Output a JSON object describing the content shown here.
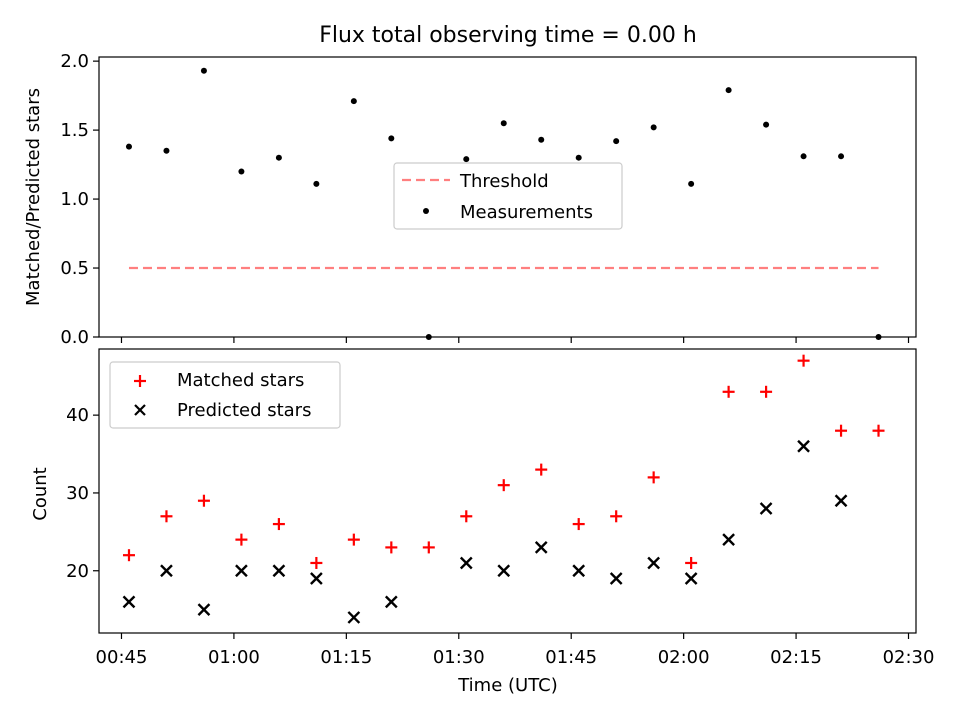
{
  "figure": {
    "title": "Flux total observing time = 0.00 h"
  },
  "chart_data": [
    {
      "type": "scatter",
      "title": "Flux total observing time = 0.00 h",
      "xlabel": "",
      "ylabel": "Matched/Predicted stars",
      "xlim": [
        "00:42",
        "02:31"
      ],
      "ylim": [
        0,
        2.03
      ],
      "yticks": [
        "0.0",
        "0.5",
        "1.0",
        "1.5",
        "2.0"
      ],
      "xticks": [
        "00:45",
        "01:00",
        "01:15",
        "01:30",
        "01:45",
        "02:00",
        "02:15",
        "02:30"
      ],
      "tick_labels_shown": false,
      "grid": false,
      "legend_position": "center",
      "series": [
        {
          "name": "Threshold",
          "style": "dashed-line",
          "color": "#ff7f7f",
          "x": [
            "00:46",
            "02:26"
          ],
          "y": [
            0.5,
            0.5
          ]
        },
        {
          "name": "Measurements",
          "style": "dot",
          "color": "#000000",
          "x": [
            "00:46",
            "00:51",
            "00:56",
            "01:01",
            "01:06",
            "01:11",
            "01:16",
            "01:21",
            "01:26",
            "01:31",
            "01:36",
            "01:41",
            "01:46",
            "01:51",
            "01:56",
            "02:01",
            "02:06",
            "02:11",
            "02:16",
            "02:21",
            "02:26"
          ],
          "y": [
            1.38,
            1.35,
            1.93,
            1.2,
            1.3,
            1.11,
            1.71,
            1.44,
            0.0,
            1.29,
            1.55,
            1.43,
            1.3,
            1.42,
            1.52,
            1.11,
            1.79,
            1.54,
            1.31,
            1.31,
            0.0
          ]
        }
      ]
    },
    {
      "type": "scatter",
      "title": "",
      "xlabel": "Time (UTC)",
      "ylabel": "Count",
      "xlim": [
        "00:42",
        "02:31"
      ],
      "ylim": [
        12,
        48.5
      ],
      "yticks": [
        "20",
        "30",
        "40"
      ],
      "xticks": [
        "00:45",
        "01:00",
        "01:15",
        "01:30",
        "01:45",
        "02:00",
        "02:15",
        "02:30"
      ],
      "grid": false,
      "legend_position": "upper left",
      "series": [
        {
          "name": "Matched stars",
          "marker": "plus",
          "color": "#ff0000",
          "x": [
            "00:46",
            "00:51",
            "00:56",
            "01:01",
            "01:06",
            "01:11",
            "01:16",
            "01:21",
            "01:26",
            "01:31",
            "01:36",
            "01:41",
            "01:46",
            "01:51",
            "01:56",
            "02:01",
            "02:06",
            "02:11",
            "02:16",
            "02:21",
            "02:26"
          ],
          "y": [
            22,
            27,
            29,
            24,
            26,
            21,
            24,
            23,
            23,
            27,
            31,
            33,
            26,
            27,
            32,
            21,
            43,
            43,
            47,
            38,
            38
          ]
        },
        {
          "name": "Predicted stars",
          "marker": "x",
          "color": "#000000",
          "x": [
            "00:46",
            "00:51",
            "00:56",
            "01:01",
            "01:06",
            "01:11",
            "01:16",
            "01:21",
            "01:31",
            "01:36",
            "01:41",
            "01:46",
            "01:51",
            "01:56",
            "02:01",
            "02:06",
            "02:11",
            "02:16",
            "02:21"
          ],
          "y": [
            16,
            20,
            15,
            20,
            20,
            19,
            14,
            16,
            21,
            20,
            23,
            20,
            19,
            21,
            19,
            24,
            28,
            36,
            29
          ]
        }
      ]
    }
  ]
}
